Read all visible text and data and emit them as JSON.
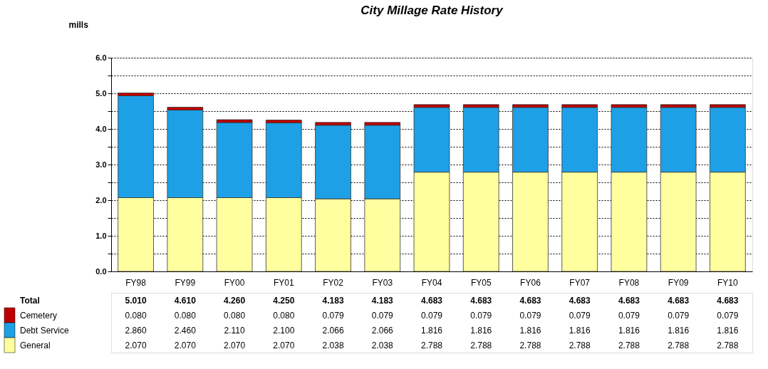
{
  "chart_data": {
    "type": "bar",
    "title": "City Millage Rate History",
    "ylabel": "mills",
    "categories": [
      "FY98",
      "FY99",
      "FY00",
      "FY01",
      "FY02",
      "FY03",
      "FY04",
      "FY05",
      "FY06",
      "FY07",
      "FY08",
      "FY09",
      "FY10"
    ],
    "stacked": true,
    "series": [
      {
        "name": "General",
        "color": "#ffffa0",
        "values": [
          2.07,
          2.07,
          2.07,
          2.07,
          2.038,
          2.038,
          2.788,
          2.788,
          2.788,
          2.788,
          2.788,
          2.788,
          2.788
        ],
        "value_labels": [
          "2.070",
          "2.070",
          "2.070",
          "2.070",
          "2.038",
          "2.038",
          "2.788",
          "2.788",
          "2.788",
          "2.788",
          "2.788",
          "2.788",
          "2.788"
        ]
      },
      {
        "name": "Debt Service",
        "color": "#1ea0e6",
        "values": [
          2.86,
          2.46,
          2.11,
          2.1,
          2.066,
          2.066,
          1.816,
          1.816,
          1.816,
          1.816,
          1.816,
          1.816,
          1.816
        ],
        "value_labels": [
          "2.860",
          "2.460",
          "2.110",
          "2.100",
          "2.066",
          "2.066",
          "1.816",
          "1.816",
          "1.816",
          "1.816",
          "1.816",
          "1.816",
          "1.816"
        ]
      },
      {
        "name": "Cemetery",
        "color": "#c00000",
        "values": [
          0.08,
          0.08,
          0.08,
          0.08,
          0.079,
          0.079,
          0.079,
          0.079,
          0.079,
          0.079,
          0.079,
          0.079,
          0.079
        ],
        "value_labels": [
          "0.080",
          "0.080",
          "0.080",
          "0.080",
          "0.079",
          "0.079",
          "0.079",
          "0.079",
          "0.079",
          "0.079",
          "0.079",
          "0.079",
          "0.079"
        ]
      }
    ],
    "annotations": [
      "Total"
    ],
    "totals": [
      "5.010",
      "4.610",
      "4.260",
      "4.250",
      "4.183",
      "4.183",
      "4.683",
      "4.683",
      "4.683",
      "4.683",
      "4.683",
      "4.683",
      "4.683"
    ],
    "ylim": [
      0,
      6
    ],
    "yticks": [
      {
        "value": 0,
        "label": "0.0"
      },
      {
        "value": 0.5,
        "label": null
      },
      {
        "value": 1,
        "label": "1.0"
      },
      {
        "value": 1.5,
        "label": null
      },
      {
        "value": 2,
        "label": "2.0"
      },
      {
        "value": 2.5,
        "label": null
      },
      {
        "value": 3,
        "label": "3.0"
      },
      {
        "value": 3.5,
        "label": null
      },
      {
        "value": 4,
        "label": "4.0"
      },
      {
        "value": 4.5,
        "label": null
      },
      {
        "value": 5,
        "label": "5.0"
      },
      {
        "value": 5.5,
        "label": null
      },
      {
        "value": 6,
        "label": "6.0"
      }
    ],
    "grid": "y",
    "legend": "bottom left"
  }
}
